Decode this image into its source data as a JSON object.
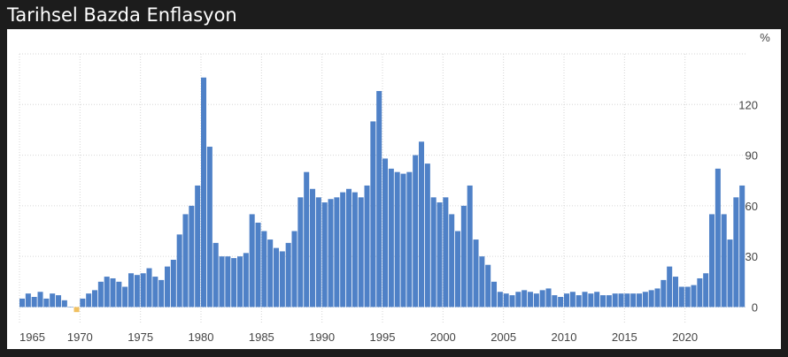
{
  "header": {
    "title": "Tarihsel Bazda Enflasyon"
  },
  "chart_data": {
    "type": "bar",
    "title": "Tarihsel Bazda Enflasyon",
    "xlabel": "",
    "ylabel": "%",
    "y_unit_label": "%",
    "xlim": [
      1965,
      2025
    ],
    "ylim": [
      -5,
      150
    ],
    "y_ticks": [
      0,
      30,
      60,
      90,
      120
    ],
    "x_ticks": [
      1965,
      1970,
      1975,
      1980,
      1985,
      1990,
      1995,
      2000,
      2005,
      2010,
      2015,
      2020
    ],
    "grid": {
      "vertical": true,
      "horizontal": true,
      "style": "dotted"
    },
    "y_axis_position": "right",
    "legend": "none",
    "bar_color": "#4f81c7",
    "negative_bar_color": "#f0c060",
    "series": [
      {
        "x": [
          1965,
          1965.5,
          1966,
          1966.5,
          1967,
          1967.5,
          1968,
          1968.5,
          1969,
          1969.5,
          1970,
          1970.5,
          1971,
          1971.5,
          1972,
          1972.5,
          1973,
          1973.5,
          1974,
          1974.5,
          1975,
          1975.5,
          1976,
          1976.5,
          1977,
          1977.5,
          1978,
          1978.5,
          1979,
          1979.5,
          1980,
          1980.5,
          1981,
          1981.5,
          1982,
          1982.5,
          1983,
          1983.5,
          1984,
          1984.5,
          1985,
          1985.5,
          1986,
          1986.5,
          1987,
          1987.5,
          1988,
          1988.5,
          1989,
          1989.5,
          1990,
          1990.5,
          1991,
          1991.5,
          1992,
          1992.5,
          1993,
          1993.5,
          1994,
          1994.5,
          1995,
          1995.5,
          1996,
          1996.5,
          1997,
          1997.5,
          1998,
          1998.5,
          1999,
          1999.5,
          2000,
          2000.5,
          2001,
          2001.5,
          2002,
          2002.5,
          2003,
          2003.5,
          2004,
          2004.5,
          2005,
          2005.5,
          2006,
          2006.5,
          2007,
          2007.5,
          2008,
          2008.5,
          2009,
          2009.5,
          2010,
          2010.5,
          2011,
          2011.5,
          2012,
          2012.5,
          2013,
          2013.5,
          2014,
          2014.5,
          2015,
          2015.5,
          2016,
          2016.5,
          2017,
          2017.5,
          2018,
          2018.5,
          2019,
          2019.5,
          2020,
          2020.5,
          2021,
          2021.5,
          2022,
          2022.5,
          2023,
          2023.5,
          2024,
          2024.5
        ],
        "values": [
          5,
          8,
          6,
          9,
          5,
          8,
          7,
          4,
          0,
          -3,
          5,
          8,
          10,
          15,
          18,
          17,
          15,
          12,
          20,
          19,
          20,
          23,
          18,
          16,
          24,
          28,
          43,
          55,
          60,
          72,
          136,
          95,
          38,
          30,
          30,
          29,
          30,
          32,
          55,
          50,
          45,
          40,
          35,
          33,
          38,
          45,
          65,
          80,
          70,
          65,
          62,
          64,
          65,
          68,
          70,
          68,
          65,
          72,
          110,
          128,
          88,
          82,
          80,
          79,
          80,
          90,
          98,
          85,
          65,
          62,
          65,
          55,
          45,
          60,
          72,
          40,
          30,
          25,
          15,
          9,
          8,
          7,
          9,
          10,
          9,
          8,
          10,
          11,
          7,
          6,
          8,
          9,
          7,
          9,
          8,
          9,
          7,
          7,
          8,
          8,
          8,
          8,
          8,
          9,
          10,
          11,
          16,
          24,
          18,
          12,
          12,
          13,
          17,
          20,
          55,
          82,
          55,
          40,
          65,
          72
        ]
      }
    ]
  }
}
